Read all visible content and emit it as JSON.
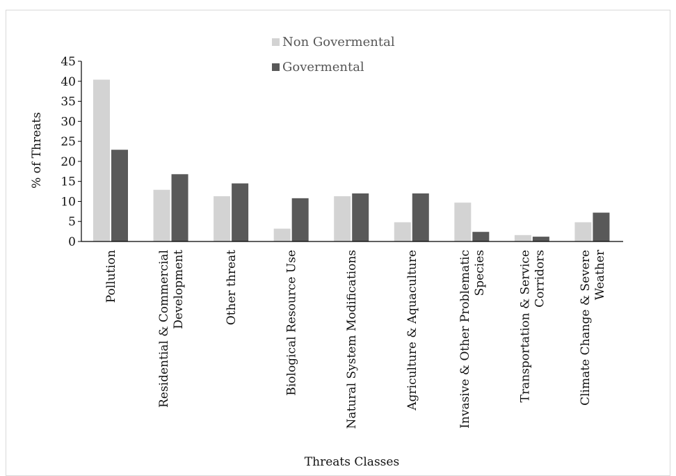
{
  "chart_data": {
    "type": "bar",
    "title": "",
    "xlabel": "Threats Classes",
    "ylabel": "% of Threats",
    "ylim": [
      0,
      45
    ],
    "yticks": [
      0,
      5,
      10,
      15,
      20,
      25,
      30,
      35,
      40,
      45
    ],
    "grid": false,
    "legend_position": "top-center",
    "categories": [
      [
        "Pollution"
      ],
      [
        "Residential & Commercial",
        "Development"
      ],
      [
        "Other threat"
      ],
      [
        "Biological Resource Use"
      ],
      [
        "Natural System Modifications"
      ],
      [
        "Agriculture & Aquaculture"
      ],
      [
        "Invasive & Other Problematic",
        "Species"
      ],
      [
        "Transportation & Service",
        "Corridors"
      ],
      [
        "Climate Change & Severe",
        "Weather"
      ]
    ],
    "series": [
      {
        "name": "Non Govermental",
        "color": "#d3d3d3",
        "values": [
          40.4,
          12.9,
          11.3,
          3.2,
          11.3,
          4.8,
          9.7,
          1.6,
          4.8
        ]
      },
      {
        "name": "Govermental",
        "color": "#595959",
        "values": [
          22.9,
          16.8,
          14.5,
          10.8,
          12.0,
          12.0,
          2.4,
          1.2,
          7.2
        ]
      }
    ]
  }
}
